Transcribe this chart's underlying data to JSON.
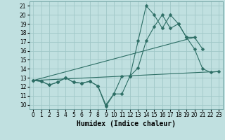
{
  "bg_color": "#c0e0e0",
  "grid_color": "#a0c8c8",
  "line_color": "#2d6e65",
  "series": [
    {
      "x": [
        0,
        1,
        2,
        3,
        4,
        5,
        6,
        7,
        8,
        9,
        10,
        11,
        12,
        13,
        14,
        15,
        16,
        17,
        18,
        19,
        20,
        21,
        22
      ],
      "y": [
        12.7,
        12.6,
        12.2,
        12.5,
        13.0,
        12.5,
        12.4,
        12.6,
        12.1,
        10.0,
        11.2,
        11.2,
        13.2,
        17.1,
        21.0,
        20.0,
        18.5,
        20.0,
        19.0,
        17.5,
        17.5,
        16.2,
        null
      ],
      "marker": "D",
      "markersize": 2.5,
      "lw": 0.8
    },
    {
      "x": [
        0,
        1,
        2,
        3,
        4,
        5,
        6,
        7,
        8,
        9,
        10,
        11,
        12,
        13,
        14,
        15,
        16,
        17,
        18,
        19,
        20,
        21,
        22,
        23
      ],
      "y": [
        12.7,
        12.6,
        12.2,
        12.5,
        13.0,
        12.5,
        12.4,
        12.6,
        12.1,
        9.8,
        11.2,
        13.2,
        13.2,
        14.1,
        17.1,
        18.7,
        20.0,
        18.5,
        19.0,
        17.5,
        16.2,
        14.0,
        13.6,
        13.7
      ],
      "marker": "D",
      "markersize": 2.5,
      "lw": 0.8
    },
    {
      "x": [
        0,
        23
      ],
      "y": [
        12.7,
        13.7
      ],
      "marker": null,
      "markersize": 0,
      "lw": 0.8
    },
    {
      "x": [
        0,
        20
      ],
      "y": [
        12.7,
        17.5
      ],
      "marker": null,
      "markersize": 0,
      "lw": 0.8
    }
  ],
  "xlabel": "Humidex (Indice chaleur)",
  "xlim": [
    -0.5,
    23.5
  ],
  "ylim": [
    9.5,
    21.5
  ],
  "xticks": [
    0,
    1,
    2,
    3,
    4,
    5,
    6,
    7,
    8,
    9,
    10,
    11,
    12,
    13,
    14,
    15,
    16,
    17,
    18,
    19,
    20,
    21,
    22,
    23
  ],
  "yticks": [
    10,
    11,
    12,
    13,
    14,
    15,
    16,
    17,
    18,
    19,
    20,
    21
  ],
  "xlabel_fontsize": 7,
  "tick_fontsize": 5.5
}
